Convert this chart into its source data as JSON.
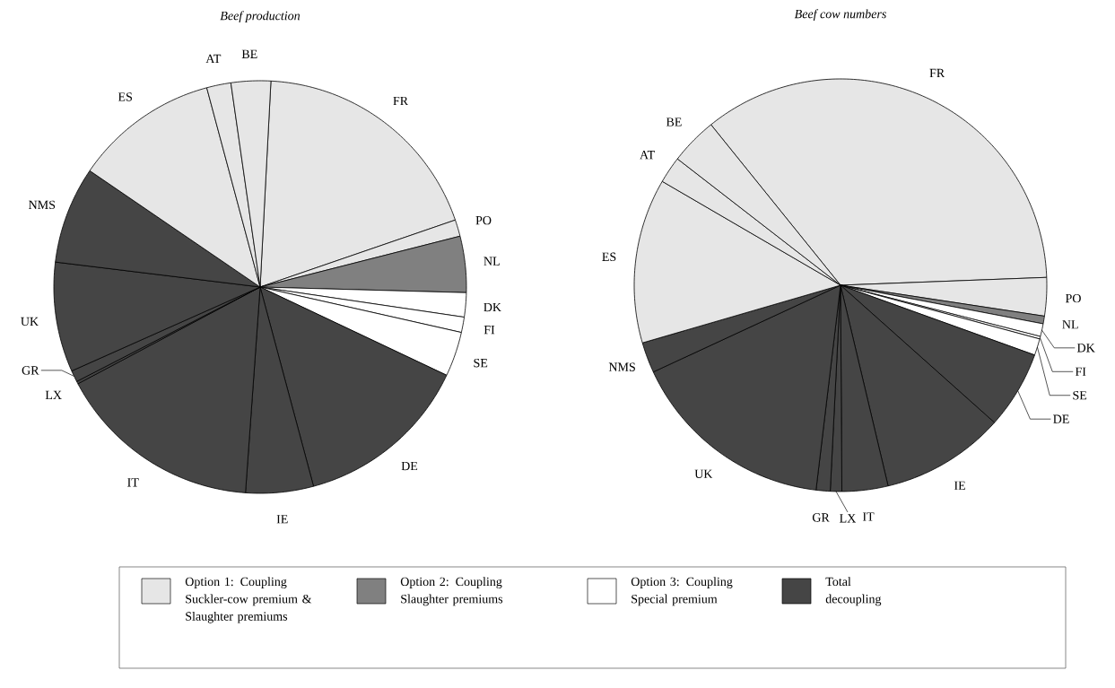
{
  "chart_data": [
    {
      "type": "pie",
      "title": "Beef production",
      "categories": [
        "FR",
        "PO",
        "NL",
        "DK",
        "FI",
        "SE",
        "DE",
        "IE",
        "IT",
        "LX",
        "GR",
        "UK",
        "NMS",
        "ES",
        "AT",
        "BE"
      ],
      "values": [
        18.9,
        1.3,
        4.4,
        1.9,
        1.2,
        3.5,
        13.8,
        5.3,
        16.1,
        0.2,
        0.9,
        8.6,
        7.6,
        11.3,
        1.9,
        3.1
      ],
      "colors": [
        "#e6e6e6",
        "#e6e6e6",
        "#808080",
        "#ffffff",
        "#ffffff",
        "#ffffff",
        "#454545",
        "#454545",
        "#454545",
        "#454545",
        "#454545",
        "#454545",
        "#454545",
        "#e6e6e6",
        "#e6e6e6",
        "#e6e6e6"
      ]
    },
    {
      "type": "pie",
      "title": "Beef cow numbers",
      "categories": [
        "FR",
        "PO",
        "NL",
        "DK",
        "FI",
        "SE",
        "DE",
        "IE",
        "IT",
        "LX",
        "GR",
        "UK",
        "NMS",
        "ES",
        "AT",
        "BE"
      ],
      "values": [
        35.2,
        3.0,
        0.6,
        1.0,
        0.2,
        1.3,
        6.1,
        9.7,
        3.6,
        0.9,
        1.1,
        16.2,
        2.4,
        12.9,
        2.1,
        3.7
      ],
      "colors": [
        "#e6e6e6",
        "#e6e6e6",
        "#808080",
        "#ffffff",
        "#ffffff",
        "#ffffff",
        "#454545",
        "#454545",
        "#454545",
        "#454545",
        "#454545",
        "#454545",
        "#454545",
        "#e6e6e6",
        "#e6e6e6",
        "#e6e6e6"
      ]
    },
    {
      "type": "other",
      "categories": [
        "Option 1: Coupling Suckler-cow premium & Slaughter premiums",
        "Option 2: Coupling Slaughter premiums",
        "Option 3: Coupling Special premium",
        "Total decoupling"
      ],
      "colors": [
        "#e6e6e6",
        "#808080",
        "#ffffff",
        "#454545"
      ]
    }
  ]
}
